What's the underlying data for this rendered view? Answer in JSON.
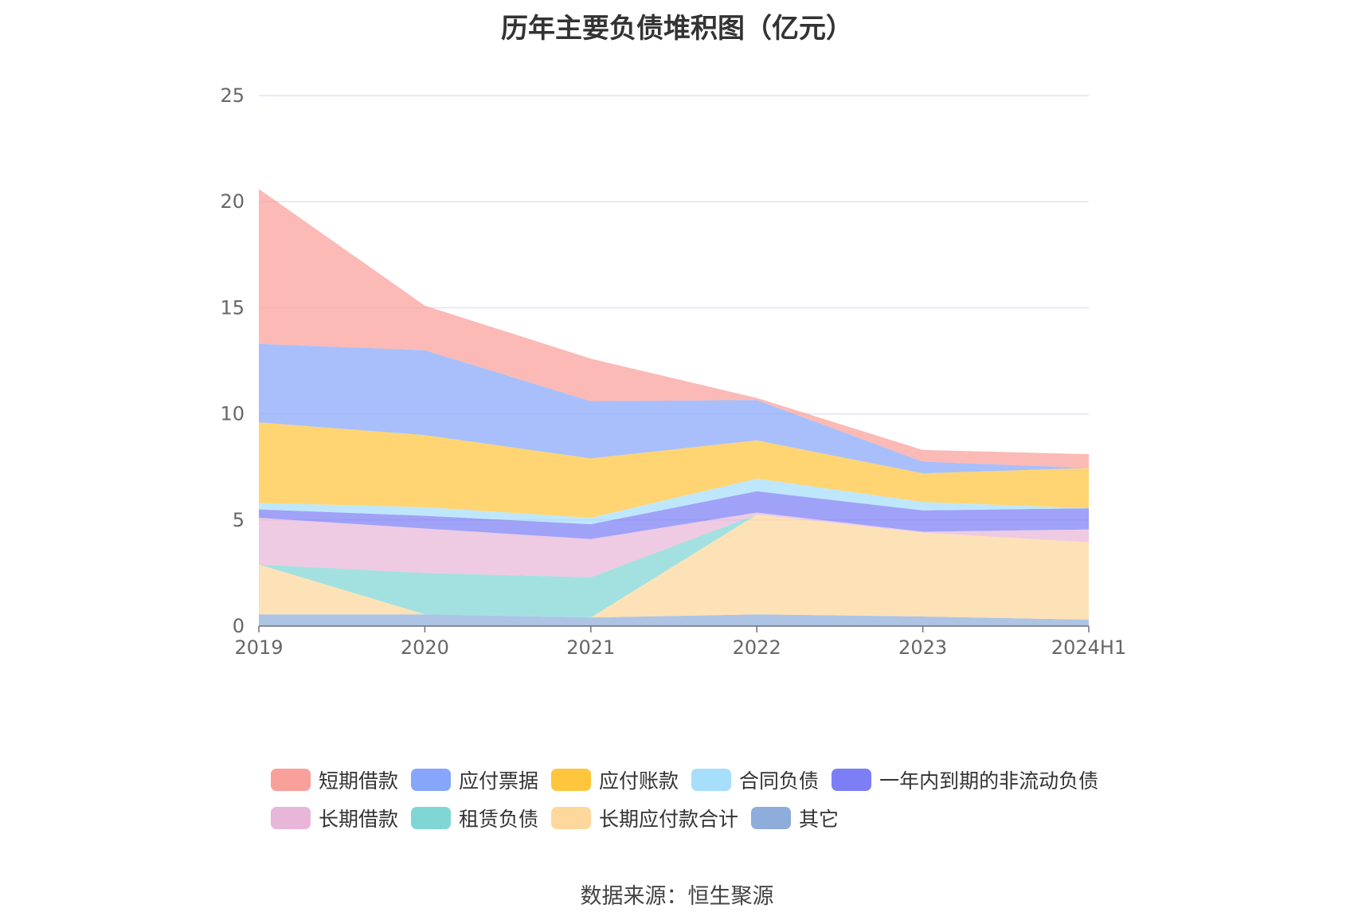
{
  "chart_data": {
    "type": "area",
    "stacked": true,
    "title": "历年主要负债堆积图（亿元）",
    "categories": [
      "2019",
      "2020",
      "2021",
      "2022",
      "2023",
      "2024H1"
    ],
    "ylim": [
      0,
      25
    ],
    "yticks": [
      "0",
      "5",
      "10",
      "15",
      "20",
      "25"
    ],
    "grid": true,
    "legend_position": "bottom",
    "series": [
      {
        "name": "其它",
        "color": "#8eaddb",
        "values": [
          0.55,
          0.55,
          0.4,
          0.55,
          0.45,
          0.3
        ]
      },
      {
        "name": "长期应付款合计",
        "color": "#fdd79b",
        "values": [
          2.35,
          0.0,
          0.0,
          4.7,
          3.95,
          3.65
        ]
      },
      {
        "name": "租赁负债",
        "color": "#7fd6d4",
        "values": [
          0.0,
          1.95,
          1.9,
          0.0,
          0.0,
          0.0
        ]
      },
      {
        "name": "长期借款",
        "color": "#e8b6d8",
        "values": [
          2.2,
          2.1,
          1.8,
          0.1,
          0.05,
          0.6
        ]
      },
      {
        "name": "一年内到期的非流动负债",
        "color": "#7b7ef5",
        "values": [
          0.4,
          0.6,
          0.7,
          1.0,
          1.0,
          1.0
        ]
      },
      {
        "name": "合同负债",
        "color": "#a6defb",
        "values": [
          0.3,
          0.4,
          0.3,
          0.6,
          0.4,
          0.0
        ]
      },
      {
        "name": "应付账款",
        "color": "#ffc53d",
        "values": [
          3.8,
          3.4,
          2.8,
          1.8,
          1.35,
          1.9
        ]
      },
      {
        "name": "应付票据",
        "color": "#86a6fb",
        "values": [
          3.7,
          4.0,
          2.7,
          1.9,
          0.55,
          0.0
        ]
      },
      {
        "name": "短期借款",
        "color": "#f9a09a",
        "values": [
          7.3,
          2.1,
          2.0,
          0.1,
          0.55,
          0.65
        ]
      }
    ]
  },
  "legend": {
    "rows": [
      [
        {
          "label": "短期借款",
          "color": "#f9a09a"
        },
        {
          "label": "应付票据",
          "color": "#86a6fb"
        },
        {
          "label": "应付账款",
          "color": "#ffc53d"
        },
        {
          "label": "合同负债",
          "color": "#a6defb"
        },
        {
          "label": "一年内到期的非流动负债",
          "color": "#7b7ef5"
        }
      ],
      [
        {
          "label": "长期借款",
          "color": "#e8b6d8"
        },
        {
          "label": "租赁负债",
          "color": "#7fd6d4"
        },
        {
          "label": "长期应付款合计",
          "color": "#fdd79b"
        },
        {
          "label": "其它",
          "color": "#8eaddb"
        }
      ]
    ]
  },
  "source": "数据来源：恒生聚源"
}
